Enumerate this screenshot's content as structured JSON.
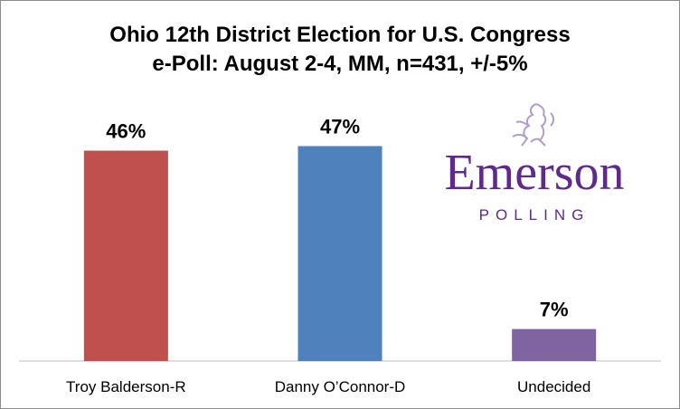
{
  "chart_data": {
    "type": "bar",
    "title": "Ohio 12th District Election for U.S. Congress",
    "subtitle": "e-Poll: August 2-4, MM, n=431, +/-5%",
    "categories": [
      "Troy Balderson-R",
      "Danny O’Connor-D",
      "Undecided"
    ],
    "values": [
      46,
      47,
      7
    ],
    "data_labels": [
      "46%",
      "47%",
      "7%"
    ],
    "colors": [
      "#c0504d",
      "#4f81bd",
      "#8064a2"
    ],
    "ylim": [
      0,
      55
    ],
    "grid": false,
    "legend": "none"
  },
  "logo": {
    "word": "Emerson",
    "sub": "POLLING",
    "color": "#5f2a8c",
    "icon": "lion-crest-icon"
  }
}
